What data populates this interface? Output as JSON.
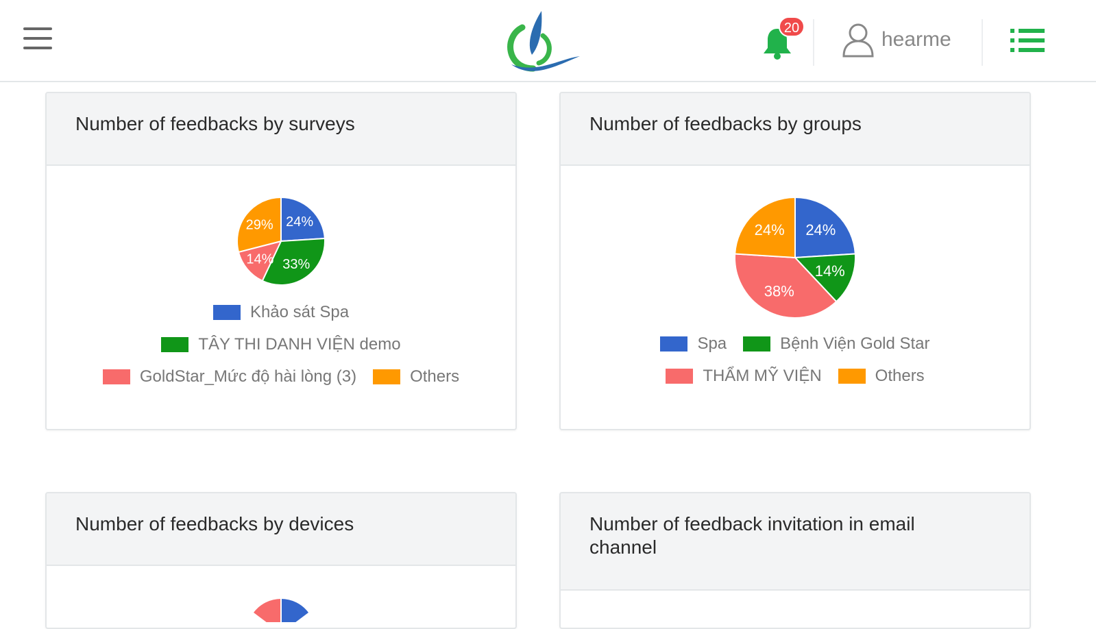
{
  "header": {
    "user_name": "hearme",
    "notifications_count": "20"
  },
  "colors": {
    "blue": "#3366cc",
    "green": "#109618",
    "red": "#f86b6b",
    "orange": "#ff9900"
  },
  "cards": [
    {
      "title": "Number of feedbacks by surveys",
      "chart_data": {
        "type": "pie",
        "slices": [
          {
            "label": "Khảo sát Spa",
            "value": 24,
            "text": "24%",
            "color": "#3366cc"
          },
          {
            "label": "TÂY THI DANH VIỆN demo",
            "value": 33,
            "text": "33%",
            "color": "#109618"
          },
          {
            "label": "GoldStar_Mức độ hài lòng (3)",
            "value": 14,
            "text": "14%",
            "color": "#f86b6b"
          },
          {
            "label": "Others",
            "value": 29,
            "text": "29%",
            "color": "#ff9900"
          }
        ],
        "legend_position": "bottom"
      }
    },
    {
      "title": "Number of feedbacks by groups",
      "chart_data": {
        "type": "pie",
        "slices": [
          {
            "label": "Spa",
            "value": 24,
            "text": "24%",
            "color": "#3366cc"
          },
          {
            "label": "Bệnh Viện Gold Star",
            "value": 14,
            "text": "14%",
            "color": "#109618"
          },
          {
            "label": "THẨM MỸ VIỆN",
            "value": 38,
            "text": "38%",
            "color": "#f86b6b"
          },
          {
            "label": "Others",
            "value": 24,
            "text": "24%",
            "color": "#ff9900"
          }
        ],
        "legend_position": "bottom"
      }
    },
    {
      "title": "Number of feedbacks by devices"
    },
    {
      "title": "Number of feedback invitation in email channel"
    }
  ]
}
